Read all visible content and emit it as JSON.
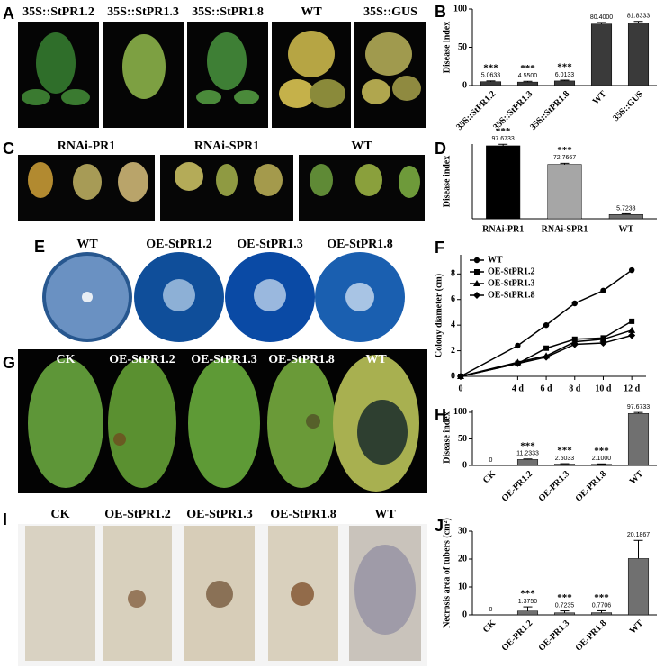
{
  "panels": {
    "A": {
      "letter": "A",
      "labels": [
        "35S::StPR1.2",
        "35S::StPR1.3",
        "35S::StPR1.8",
        "WT",
        "35S::GUS"
      ]
    },
    "C": {
      "letter": "C",
      "labels": [
        "RNAi-PR1",
        "RNAi-SPR1",
        "WT"
      ]
    },
    "E": {
      "letter": "E",
      "labels": [
        "WT",
        "OE-StPR1.2",
        "OE-StPR1.3",
        "OE-StPR1.8"
      ]
    },
    "G": {
      "letter": "G",
      "labels": [
        "CK",
        "OE-StPR1.2",
        "OE-StPR1.3",
        "OE-StPR1.8",
        "WT"
      ]
    },
    "I": {
      "letter": "I",
      "labels": [
        "CK",
        "OE-StPR1.2",
        "OE-StPR1.3",
        "OE-StPR1.8",
        "WT"
      ]
    }
  },
  "chart_data": [
    {
      "type": "bar",
      "panel_label": "B",
      "y_label": "Disease index",
      "categories": [
        "35S::StPR1.2",
        "35S::StPR1.3",
        "35S::StPR1.8",
        "WT",
        "35S::GUS"
      ],
      "values": [
        5.0633,
        4.55,
        6.0133,
        80.4,
        81.8333
      ],
      "value_labels": [
        "5.0633",
        "4.5500",
        "6.0133",
        "80.4000",
        "81.8333"
      ],
      "errors": [
        1,
        1,
        1,
        2,
        2
      ],
      "annotations": [
        "***",
        "***",
        "***",
        null,
        null
      ],
      "colors": [
        "#3a3a3a",
        "#3a3a3a",
        "#3a3a3a",
        "#3a3a3a",
        "#3a3a3a"
      ],
      "ylim": [
        0,
        100
      ],
      "yticks": [
        0,
        50,
        100
      ]
    },
    {
      "type": "bar",
      "panel_label": "D",
      "y_label": "Disease index",
      "categories": [
        "RNAi-PR1",
        "RNAi-SPR1",
        "WT"
      ],
      "values": [
        97.6733,
        72.7667,
        5.7233
      ],
      "value_labels": [
        "97.6733",
        "72.7667",
        "5.7233"
      ],
      "errors": [
        2,
        1.5,
        1
      ],
      "annotations": [
        "***",
        "***",
        null
      ],
      "colors": [
        "#000000",
        "#a6a6a6",
        "#6e6e6e"
      ],
      "ylim": [
        0,
        100
      ]
    },
    {
      "type": "line",
      "panel_label": "F",
      "y_label": "Colony diameter (cm)",
      "x": [
        0,
        4,
        6,
        8,
        10,
        12
      ],
      "xticks": [
        0,
        {
          "value": 4,
          "label": "4 d"
        },
        {
          "value": 6,
          "label": "6 d"
        },
        {
          "value": 8,
          "label": "8 d"
        },
        {
          "value": 10,
          "label": "10 d"
        },
        {
          "value": 12,
          "label": "12 d"
        }
      ],
      "xlim": [
        0,
        13
      ],
      "ylim": [
        0,
        9.5
      ],
      "yticks": [
        0,
        2,
        4,
        6,
        8
      ],
      "series": [
        {
          "name": "WT",
          "color": "#000000",
          "marker": "circle",
          "values": [
            0,
            2.4,
            4.0,
            5.7,
            6.7,
            8.3
          ]
        },
        {
          "name": "OE-StPR1.2",
          "color": "#000000",
          "marker": "square",
          "values": [
            0,
            1.0,
            2.2,
            2.9,
            3.0,
            4.3
          ]
        },
        {
          "name": "OE-StPR1.3",
          "color": "#000000",
          "marker": "triangle",
          "values": [
            0,
            1.1,
            1.6,
            2.7,
            2.9,
            3.6
          ]
        },
        {
          "name": "OE-StPR1.8",
          "color": "#000000",
          "marker": "diamond",
          "values": [
            0,
            1.0,
            1.5,
            2.5,
            2.6,
            3.2
          ]
        }
      ]
    },
    {
      "type": "bar",
      "panel_label": "H",
      "y_label": "Disease index",
      "categories": [
        "CK",
        "OE-PR1.2",
        "OE-PR1.3",
        "OE-PR1.8",
        "WT"
      ],
      "values": [
        0,
        11.2333,
        2.5033,
        2.1,
        97.6733
      ],
      "value_labels": [
        "0",
        "11.2333",
        "2.5033",
        "2.1000",
        "97.6733"
      ],
      "errors": [
        0,
        1,
        0.8,
        0.8,
        2
      ],
      "annotations": [
        null,
        "***",
        "***",
        "***",
        null
      ],
      "colors": [
        "#707070",
        "#707070",
        "#707070",
        "#707070",
        "#707070"
      ],
      "ylim": [
        0,
        105
      ],
      "yticks": [
        0,
        50,
        100
      ]
    },
    {
      "type": "bar",
      "panel_label": "J",
      "y_label": "Necrosis area of tubers (cm²)",
      "categories": [
        "CK",
        "OE-PR1.2",
        "OE-PR1.3",
        "OE-PR1.8",
        "WT"
      ],
      "values": [
        0,
        1.375,
        0.7235,
        0.7706,
        20.1867
      ],
      "value_labels": [
        "0",
        "1.3750",
        "0.7235",
        "0.7706",
        "20.1867"
      ],
      "errors": [
        0,
        1.5,
        0.7,
        0.7,
        6.5
      ],
      "annotations": [
        null,
        "***",
        "***",
        "***",
        null
      ],
      "colors": [
        "#707070",
        "#707070",
        "#707070",
        "#707070",
        "#707070"
      ],
      "ylim": [
        0,
        30
      ],
      "yticks": [
        0,
        10,
        20,
        30
      ]
    }
  ]
}
